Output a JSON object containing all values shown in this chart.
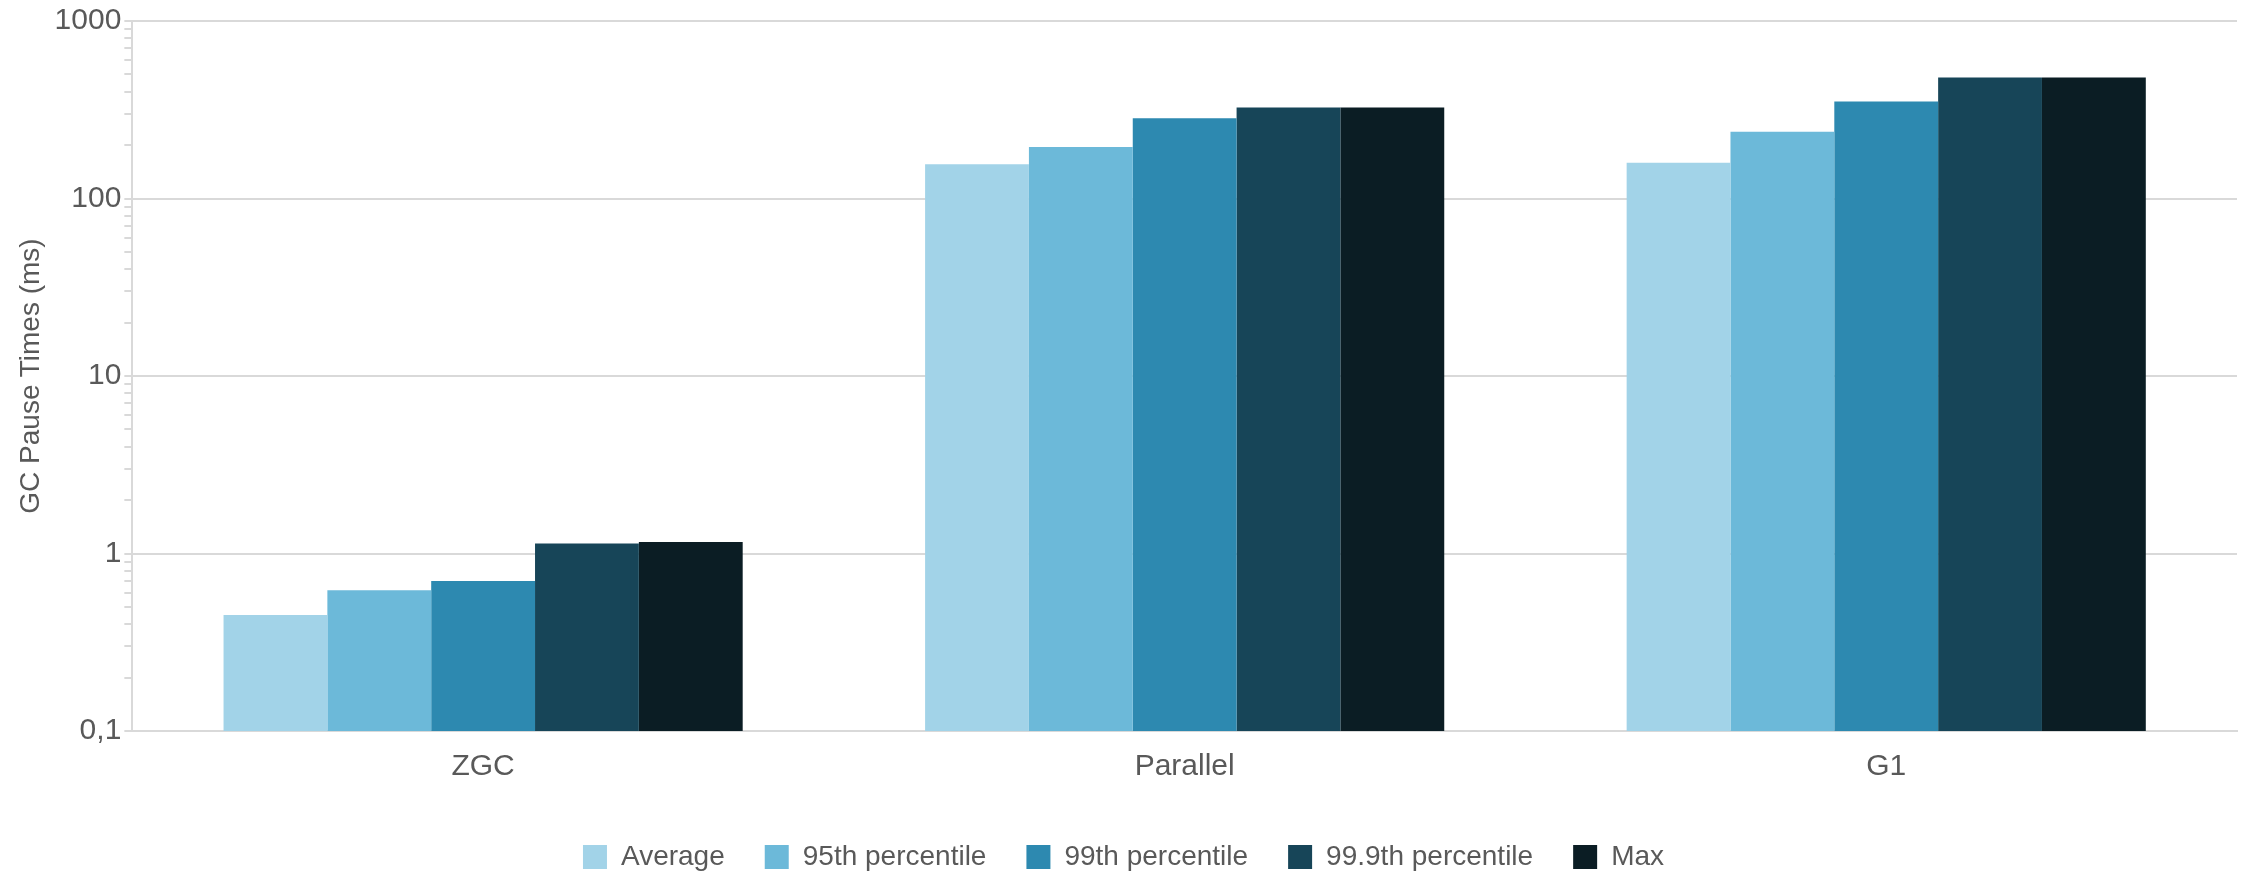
{
  "chart_data": {
    "type": "bar",
    "ylabel": "GC Pause Times (ms)",
    "categories": [
      "ZGC",
      "Parallel",
      "G1"
    ],
    "series": [
      {
        "name": "Average",
        "color": "#a2d3e8",
        "values": [
          0.45,
          156,
          159
        ]
      },
      {
        "name": "95th percentile",
        "color": "#6cb9d9",
        "values": [
          0.62,
          195,
          238
        ]
      },
      {
        "name": "99th percentile",
        "color": "#2d89b0",
        "values": [
          0.7,
          283,
          352
        ]
      },
      {
        "name": "99.9th percentile",
        "color": "#174558",
        "values": [
          1.14,
          326,
          481
        ]
      },
      {
        "name": "Max",
        "color": "#0b1d24",
        "values": [
          1.16,
          326,
          481
        ]
      }
    ],
    "log": "y",
    "ylim": [
      0.1,
      1000
    ],
    "yticks": [
      {
        "value": 0.1,
        "label": "0,1"
      },
      {
        "value": 0.2,
        "label": null
      },
      {
        "value": 0.3,
        "label": null
      },
      {
        "value": 0.4,
        "label": null
      },
      {
        "value": 0.5,
        "label": null
      },
      {
        "value": 0.6,
        "label": null
      },
      {
        "value": 0.7,
        "label": null
      },
      {
        "value": 0.8,
        "label": null
      },
      {
        "value": 0.9,
        "label": null
      },
      {
        "value": 1,
        "label": "1"
      },
      {
        "value": 2,
        "label": null
      },
      {
        "value": 3,
        "label": null
      },
      {
        "value": 4,
        "label": null
      },
      {
        "value": 5,
        "label": null
      },
      {
        "value": 6,
        "label": null
      },
      {
        "value": 7,
        "label": null
      },
      {
        "value": 8,
        "label": null
      },
      {
        "value": 9,
        "label": null
      },
      {
        "value": 10,
        "label": "10"
      },
      {
        "value": 20,
        "label": null
      },
      {
        "value": 30,
        "label": null
      },
      {
        "value": 40,
        "label": null
      },
      {
        "value": 50,
        "label": null
      },
      {
        "value": 60,
        "label": null
      },
      {
        "value": 70,
        "label": null
      },
      {
        "value": 80,
        "label": null
      },
      {
        "value": 90,
        "label": null
      },
      {
        "value": 100,
        "label": "100"
      },
      {
        "value": 200,
        "label": null
      },
      {
        "value": 300,
        "label": null
      },
      {
        "value": 400,
        "label": null
      },
      {
        "value": 500,
        "label": null
      },
      {
        "value": 600,
        "label": null
      },
      {
        "value": 700,
        "label": null
      },
      {
        "value": 800,
        "label": null
      },
      {
        "value": 900,
        "label": null
      },
      {
        "value": 1000,
        "label": "1000"
      }
    ],
    "grid": "y",
    "legend": "bottom"
  }
}
